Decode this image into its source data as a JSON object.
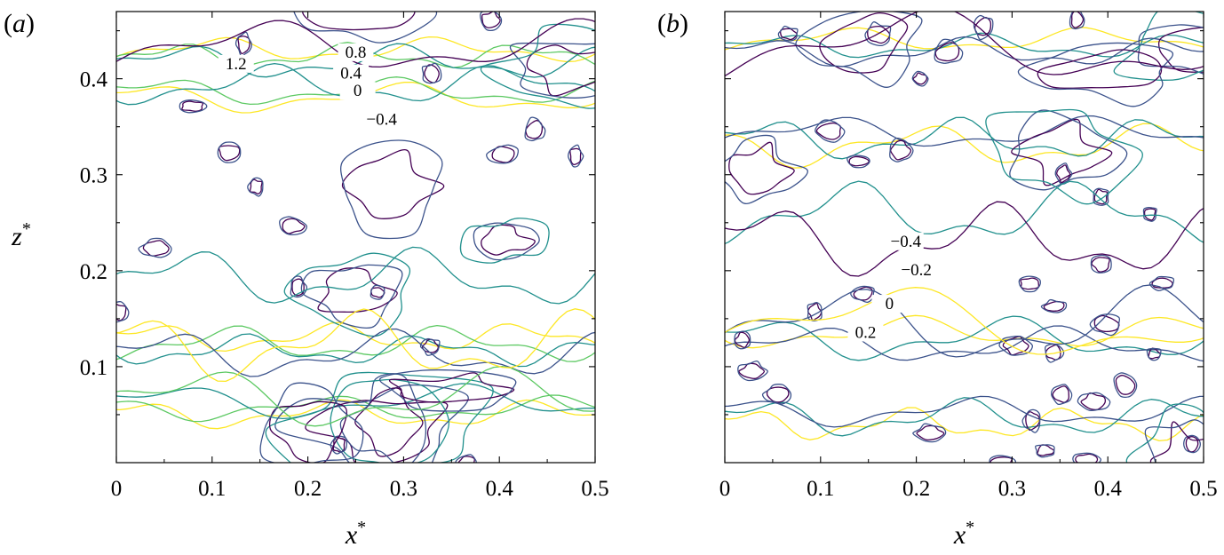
{
  "chart_data": [
    {
      "type": "contour",
      "panel_label": "a",
      "xlabel": "x",
      "xlabel_sup": "*",
      "ylabel": "z",
      "ylabel_sup": "*",
      "xlim": [
        0,
        0.5
      ],
      "ylim": [
        0,
        0.47
      ],
      "xticks": [
        "0",
        "0.1",
        "0.2",
        "0.3",
        "0.4",
        "0.5"
      ],
      "yticks": [
        "0.1",
        "0.2",
        "0.3",
        "0.4"
      ],
      "levels": [
        -0.4,
        0,
        0.4,
        0.8,
        1.2
      ],
      "level_colors": [
        "#440154",
        "#3b528b",
        "#21908d",
        "#5dc963",
        "#fde725"
      ],
      "contour_labels": [
        {
          "text": "1.2",
          "x": 0.125,
          "y": 0.41
        },
        {
          "text": "0.8",
          "x": 0.25,
          "y": 0.422
        },
        {
          "text": "0.4",
          "x": 0.245,
          "y": 0.4
        },
        {
          "text": "0",
          "x": 0.252,
          "y": 0.382
        },
        {
          "text": "−0.4",
          "x": 0.277,
          "y": 0.352
        }
      ]
    },
    {
      "type": "contour",
      "panel_label": "b",
      "xlabel": "x",
      "xlabel_sup": "*",
      "xlim": [
        0,
        0.5
      ],
      "ylim": [
        0,
        0.47
      ],
      "xticks": [
        "0",
        "0.1",
        "0.2",
        "0.3",
        "0.4",
        "0.5"
      ],
      "levels": [
        -0.4,
        -0.2,
        0,
        0.2
      ],
      "level_colors": [
        "#440154",
        "#3b528b",
        "#21908d",
        "#fde725"
      ],
      "contour_labels": [
        {
          "text": "−0.4",
          "x": 0.189,
          "y": 0.225
        },
        {
          "text": "−0.2",
          "x": 0.2,
          "y": 0.195
        },
        {
          "text": "0",
          "x": 0.172,
          "y": 0.16
        },
        {
          "text": "0.2",
          "x": 0.147,
          "y": 0.13
        }
      ]
    }
  ]
}
